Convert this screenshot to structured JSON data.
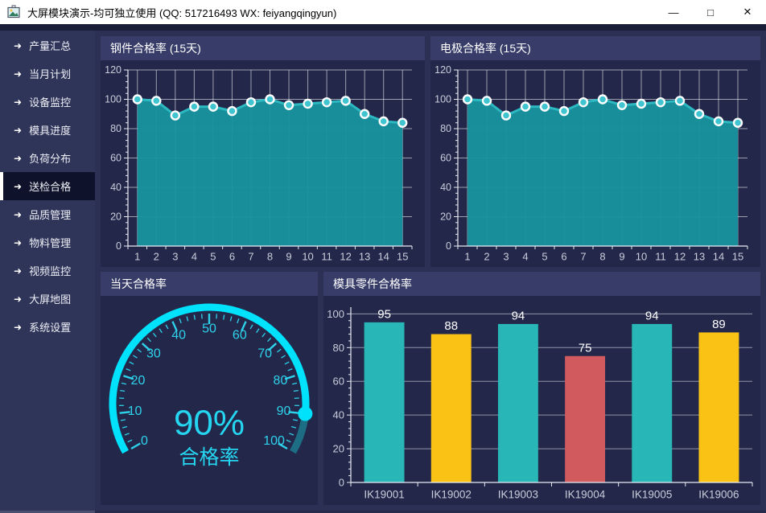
{
  "window": {
    "title": "大屏模块演示-均可独立使用 (QQ: 517216493  WX: feiyangqingyun)",
    "minimize": "—",
    "maximize": "□",
    "close": "✕"
  },
  "sidebar": {
    "arrow_icon": "➜",
    "items": [
      {
        "label": "产量汇总",
        "active": false
      },
      {
        "label": "当月计划",
        "active": false
      },
      {
        "label": "设备监控",
        "active": false
      },
      {
        "label": "模具进度",
        "active": false
      },
      {
        "label": "负荷分布",
        "active": false
      },
      {
        "label": "送检合格",
        "active": true
      },
      {
        "label": "品质管理",
        "active": false
      },
      {
        "label": "物料管理",
        "active": false
      },
      {
        "label": "视频监控",
        "active": false
      },
      {
        "label": "大屏地图",
        "active": false
      },
      {
        "label": "系统设置",
        "active": false
      }
    ]
  },
  "chart_data": [
    {
      "type": "area",
      "title": "钢件合格率 (15天)",
      "x": [
        "1",
        "2",
        "3",
        "4",
        "5",
        "6",
        "7",
        "8",
        "9",
        "10",
        "11",
        "12",
        "13",
        "14",
        "15"
      ],
      "values": [
        100,
        99,
        89,
        95,
        95,
        92,
        98,
        100,
        96,
        97,
        98,
        99,
        90,
        85,
        84
      ],
      "ylim": [
        0,
        120
      ],
      "yticks": [
        0,
        20,
        40,
        60,
        80,
        100,
        120
      ],
      "grid": true,
      "colors": {
        "line": "#2cb9c1",
        "fill": "#18939e",
        "marker": "#40c4cf"
      }
    },
    {
      "type": "area",
      "title": "电极合格率 (15天)",
      "x": [
        "1",
        "2",
        "3",
        "4",
        "5",
        "6",
        "7",
        "8",
        "9",
        "10",
        "11",
        "12",
        "13",
        "14",
        "15"
      ],
      "values": [
        100,
        99,
        89,
        95,
        95,
        92,
        98,
        100,
        96,
        97,
        98,
        99,
        90,
        85,
        84
      ],
      "ylim": [
        0,
        120
      ],
      "yticks": [
        0,
        20,
        40,
        60,
        80,
        100,
        120
      ],
      "grid": true,
      "colors": {
        "line": "#2cb9c1",
        "fill": "#18939e",
        "marker": "#40c4cf"
      }
    },
    {
      "type": "gauge",
      "title": "当天合格率",
      "value": 90,
      "min": 0,
      "max": 100,
      "value_text": "90%",
      "label": "合格率",
      "tick_labels": [
        0,
        10,
        20,
        30,
        40,
        50,
        60,
        70,
        80,
        90,
        100
      ],
      "colors": {
        "arc": "#00e2fb",
        "arc_rest": "#1d6e84",
        "ticks": "#2ed2ea",
        "text": "#25d6f0"
      }
    },
    {
      "type": "bar",
      "title": "模具零件合格率",
      "categories": [
        "IK19001",
        "IK19002",
        "IK19003",
        "IK19004",
        "IK19005",
        "IK19006"
      ],
      "values": [
        95,
        88,
        94,
        75,
        94,
        89
      ],
      "bar_colors": [
        "#28b6b7",
        "#fbc216",
        "#28b6b7",
        "#d05a5e",
        "#28b6b7",
        "#fbc216"
      ],
      "ylim": [
        0,
        104
      ],
      "yticks": [
        0,
        20,
        40,
        60,
        80,
        100
      ],
      "grid": true
    }
  ]
}
